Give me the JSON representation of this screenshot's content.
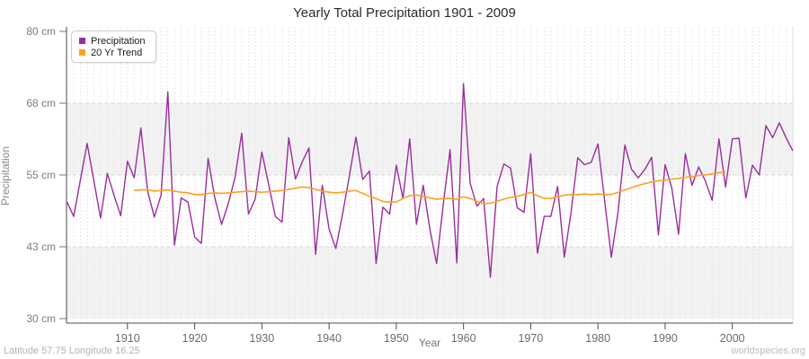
{
  "title": "Yearly Total Precipitation 1901 - 2009",
  "footer": {
    "left": "Latitude 57.75 Longitude 16.25",
    "right": "worldspecies.org"
  },
  "chart_data": {
    "type": "line",
    "title": "Yearly Total Precipitation 1901 - 2009",
    "xlabel": "Year",
    "ylabel": "Precipitation",
    "x_start": 1901,
    "x_end": 2009,
    "ylim": [
      30,
      80
    ],
    "x_ticks": [
      1910,
      1920,
      1930,
      1940,
      1950,
      1960,
      1970,
      1980,
      1990,
      2000
    ],
    "y_ticks": [
      {
        "value": 80,
        "label": "80 cm"
      },
      {
        "value": 67.5,
        "label": "68 cm"
      },
      {
        "value": 55,
        "label": "55 cm"
      },
      {
        "value": 42.5,
        "label": "43 cm"
      },
      {
        "value": 30,
        "label": "30 cm"
      }
    ],
    "grid": {
      "vertical_dashed_per_year": true,
      "horizontal_dashed_at_ticks": true,
      "alternating_band_ranges": [
        [
          55,
          67.5
        ],
        [
          30,
          42.5
        ]
      ],
      "band_color": "#f2f2f2",
      "vgrid_color": "#e7e7e7",
      "hgrid_color": "#d9d9d9"
    },
    "legend": {
      "position": "top-left",
      "entries": [
        {
          "label": "Precipitation",
          "color": "#9B2D9E"
        },
        {
          "label": "20 Yr Trend",
          "color": "#FFA01E"
        }
      ]
    },
    "series": [
      {
        "name": "Precipitation",
        "color": "#9B2D9E",
        "start_year": 1901,
        "values": [
          50.3,
          47.8,
          54.2,
          60.5,
          54,
          47.5,
          55.3,
          51.5,
          47.9,
          57.4,
          54.5,
          63.2,
          52.2,
          47.7,
          51.5,
          69.5,
          42.8,
          51,
          50.3,
          44.2,
          43.1,
          57.9,
          51,
          46.4,
          50,
          54.5,
          62.3,
          48.2,
          50.8,
          59,
          53.4,
          47.8,
          46.8,
          61.5,
          54.3,
          57.3,
          59.7,
          41.2,
          53.2,
          45.6,
          42.2,
          48.2,
          54.7,
          61.6,
          54.2,
          55.7,
          39.6,
          49.4,
          48.2,
          56.7,
          50.9,
          61.3,
          46.4,
          53.2,
          45.5,
          39.6,
          50,
          59.4,
          39.7,
          70.9,
          53.5,
          49.6,
          50.9,
          37.2,
          53,
          56.9,
          56.2,
          49.3,
          48.5,
          58.7,
          41.4,
          47.8,
          47.8,
          53,
          40.7,
          48.5,
          58,
          56.8,
          57.2,
          60.4,
          50.6,
          40.7,
          48.6,
          60.2,
          56,
          54.5,
          56,
          58.1,
          44.6,
          56.8,
          52.7,
          44.7,
          58.7,
          53.2,
          56.4,
          53.9,
          50.6,
          61.3,
          52.9,
          61.3,
          61.4,
          51,
          56.7,
          55,
          63.6,
          61.5,
          64.1,
          61.5,
          59.2
        ]
      },
      {
        "name": "20 Yr Trend",
        "color": "#FFA01E",
        "start_year": 1911,
        "values": [
          52.3,
          52.4,
          52.4,
          52.2,
          52.3,
          52.4,
          52.2,
          52,
          51.9,
          51.6,
          51.6,
          51.8,
          51.9,
          51.8,
          51.9,
          52,
          52.1,
          52.2,
          52.1,
          52,
          52.1,
          52.2,
          52.3,
          52.5,
          52.7,
          52.9,
          52.8,
          52.5,
          52.2,
          52,
          51.9,
          52,
          52.2,
          52.3,
          51.8,
          51.3,
          50.9,
          50.4,
          50.3,
          50.3,
          50.9,
          51.4,
          51.5,
          51.3,
          51,
          50.8,
          50.9,
          50.9,
          50.8,
          51.2,
          50.9,
          50.4,
          50,
          50.1,
          50.4,
          50.8,
          51.1,
          51.3,
          51.6,
          52,
          51.4,
          50.9,
          50.9,
          51.2,
          51.5,
          51.6,
          51.6,
          51.7,
          51.6,
          51.7,
          51.6,
          51.6,
          52,
          52.4,
          52.8,
          53.2,
          53.5,
          53.8,
          54,
          54.1,
          54.3,
          54.4,
          54.6,
          54.7,
          54.9,
          55,
          55.2,
          55.4,
          55.6
        ]
      }
    ]
  }
}
